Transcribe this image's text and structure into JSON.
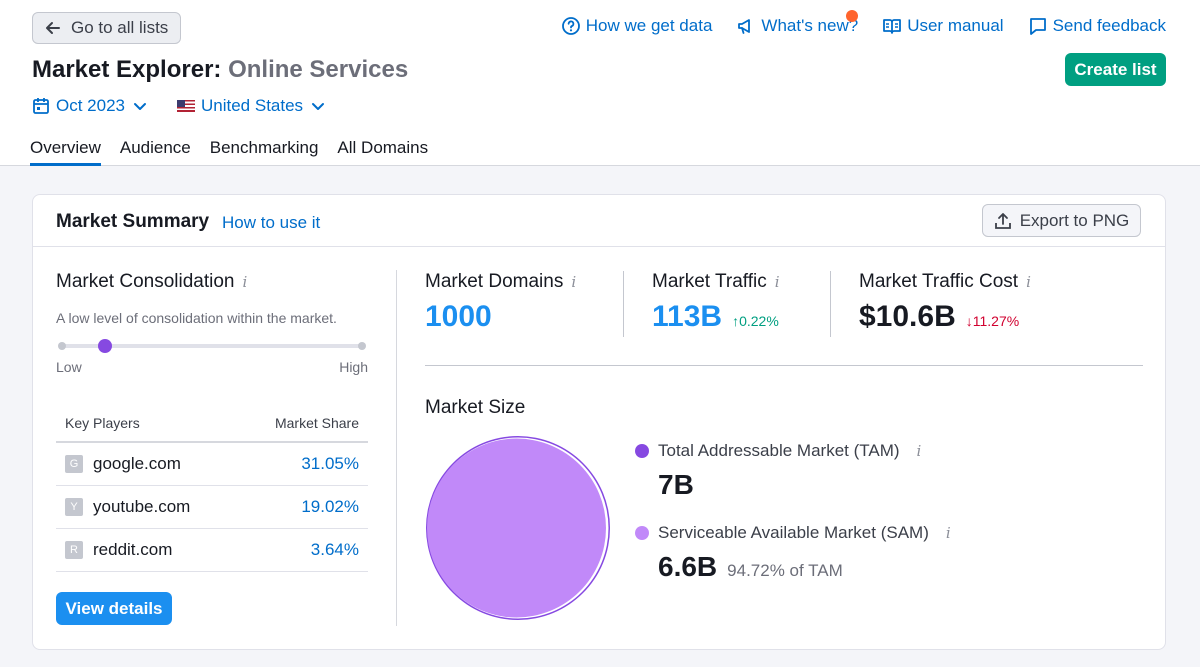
{
  "header": {
    "back_label": "Go to all lists",
    "links": [
      {
        "label": "How we get data",
        "icon": "question-circle-icon"
      },
      {
        "label": "What's new?",
        "icon": "megaphone-icon"
      },
      {
        "label": "User manual",
        "icon": "book-icon"
      },
      {
        "label": "Send feedback",
        "icon": "feedback-icon"
      }
    ],
    "title_main": "Market Explorer:",
    "title_sub": "Online Services",
    "create_label": "Create list",
    "date_filter": "Oct 2023",
    "country_filter": "United States",
    "tabs": [
      "Overview",
      "Audience",
      "Benchmarking",
      "All Domains"
    ],
    "active_tab": "Overview"
  },
  "card": {
    "title": "Market Summary",
    "howto_label": "How to use it",
    "export_label": "Export to PNG",
    "consolidation": {
      "title": "Market Consolidation",
      "info": "i",
      "text": "A low level of consolidation within the market.",
      "low": "Low",
      "high": "High",
      "level": 0.14
    },
    "key_players": {
      "col1": "Key Players",
      "col2": "Market Share",
      "rows": [
        {
          "letter": "G",
          "domain": "google.com",
          "share": "31.05%"
        },
        {
          "letter": "Y",
          "domain": "youtube.com",
          "share": "19.02%"
        },
        {
          "letter": "R",
          "domain": "reddit.com",
          "share": "3.64%"
        }
      ]
    },
    "view_label": "View details",
    "metrics": {
      "domains_label": "Market Domains",
      "domains_value": "1000",
      "traffic_label": "Market Traffic",
      "traffic_value": "113B",
      "traffic_change": "0.22%",
      "cost_label": "Market Traffic Cost",
      "cost_value": "$10.6B",
      "cost_change": "11.27%"
    },
    "market_size": {
      "title": "Market Size",
      "tam_label": "Total Addressable Market (TAM)",
      "tam_value": "7B",
      "sam_label": "Serviceable Available Market (SAM)",
      "sam_value": "6.6B",
      "sam_pct": "94.72% of TAM",
      "sam_ratio": 0.9472
    }
  },
  "colors": {
    "accent": "#006dca",
    "primary_btn": "#009f81",
    "tam": "#8649e1",
    "sam": "#c189f9",
    "up": "#009f81",
    "down": "#d1002f"
  }
}
